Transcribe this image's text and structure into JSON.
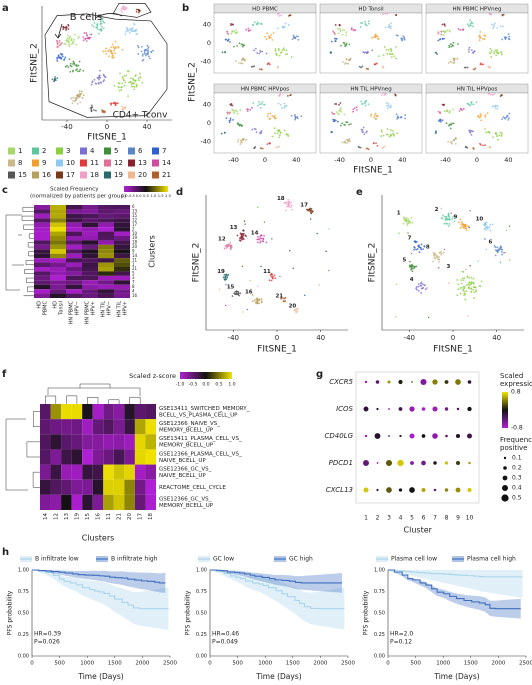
{
  "panels": {
    "a": {
      "label": "a",
      "xlabel": "FItSNE_1",
      "ylabel": "FItSNE_2",
      "xticks": [
        -40,
        0,
        40
      ],
      "annotations": [
        "B cells",
        "CD4+ Tconv"
      ],
      "legend": [
        {
          "label": "1",
          "color": "#a8d86a"
        },
        {
          "label": "2",
          "color": "#5fc7a0"
        },
        {
          "label": "3",
          "color": "#8ccf3f"
        },
        {
          "label": "4",
          "color": "#7b6fd0"
        },
        {
          "label": "5",
          "color": "#3f8f3a"
        },
        {
          "label": "6",
          "color": "#5a86c8"
        },
        {
          "label": "7",
          "color": "#2f5fd0"
        },
        {
          "label": "8",
          "color": "#c9b98a"
        },
        {
          "label": "9",
          "color": "#f0a030"
        },
        {
          "label": "10",
          "color": "#8fc8f0"
        },
        {
          "label": "11",
          "color": "#e03a3a"
        },
        {
          "label": "12",
          "color": "#e0709a"
        },
        {
          "label": "13",
          "color": "#8a1f2f"
        },
        {
          "label": "14",
          "color": "#d04aa0"
        },
        {
          "label": "15",
          "color": "#555555"
        },
        {
          "label": "16",
          "color": "#b8a060"
        },
        {
          "label": "17",
          "color": "#7a3a1a"
        },
        {
          "label": "18",
          "color": "#f0a0c8"
        },
        {
          "label": "19",
          "color": "#2a6a6a"
        },
        {
          "label": "20",
          "color": "#f0b890"
        },
        {
          "label": "21",
          "color": "#b0602a"
        }
      ]
    },
    "b": {
      "label": "b",
      "facets": [
        "HD PBMC",
        "HD Tonsil",
        "HN PBMC HPVneg",
        "HN PBMC HPVpos",
        "HN TIL HPVneg",
        "HN TIL HPVpos"
      ],
      "xticks": [
        -40,
        0,
        40
      ],
      "yticks": [
        -40,
        0,
        40
      ],
      "xlabel": "FItSNE_1",
      "ylabel": "FItSNE_2"
    },
    "c": {
      "label": "c",
      "legend_title": "Scaled Frequency",
      "legend_subtitle": "(normalized by patients per group)",
      "legend_ticks": [
        {
          "value": -1,
          "label": "-1.0"
        },
        {
          "value": -0.5,
          "label": "-0.5"
        },
        {
          "value": 0,
          "label": "0.0"
        },
        {
          "value": 0.5,
          "label": "0.5"
        },
        {
          "value": 1,
          "label": "1.0"
        },
        {
          "value": 1.5,
          "label": "1.5"
        },
        {
          "value": 2,
          "label": "2.0"
        }
      ],
      "rows": [
        "6",
        "13",
        "15",
        "12",
        "17",
        "2",
        "10",
        "19",
        "18",
        "20",
        "9",
        "14",
        "11",
        "1",
        "21",
        "5",
        "3",
        "7",
        "8",
        "4",
        "16"
      ],
      "columns": [
        [
          "HD",
          "PBMC"
        ],
        [
          "HD",
          "Tonsil"
        ],
        [
          "HN PBMC",
          "HPV−"
        ],
        [
          "HN PBMC",
          "HPV+"
        ],
        [
          "HN TIL",
          "HPV−"
        ],
        [
          "HN TIL",
          "HPV+"
        ]
      ],
      "ylabel": "Clusters"
    },
    "d": {
      "label": "d",
      "cluster_labels": [
        "18",
        "17",
        "13",
        "14",
        "12",
        "19",
        "11",
        "15",
        "16",
        "21",
        "20"
      ],
      "xticks": [
        -40,
        0,
        40
      ],
      "xlabel": "FItSNE_1",
      "ylabel": "FItSNE_2"
    },
    "e": {
      "label": "e",
      "cluster_labels": [
        "1",
        "2",
        "9",
        "10",
        "7",
        "8",
        "6",
        "5",
        "4",
        "3"
      ],
      "xticks": [
        -40,
        0,
        40
      ],
      "xlabel": "FItSNE_1",
      "ylabel": "FItSNE_2"
    },
    "f": {
      "label": "f",
      "legend_title": "Scaled z-score",
      "legend_ticks": [
        {
          "value": -1,
          "label": "-1.0"
        },
        {
          "value": -0.5,
          "label": "-0.5"
        },
        {
          "value": 0,
          "label": "0.0"
        },
        {
          "value": 0.5,
          "label": "0.5"
        },
        {
          "value": 1,
          "label": "1.0"
        }
      ],
      "rows": [
        [
          "GSE13411_SWITCHED_MEMORY_",
          "BCELL_VS_PLASMA_CELL_UP"
        ],
        [
          "GSE12366_NAIVE_VS_",
          "MEMORY_BCELL_UP"
        ],
        [
          "GSE13411_PLASMA_CELL_VS_",
          "MEMORY_BCELL_UP"
        ],
        [
          "GSE12366_PLASMA_CELL_VS_",
          "NAIVE_BCELL_UP"
        ],
        [
          "GSE12366_GC_VS_",
          "NAIVE_BCELL_UP"
        ],
        [
          "REACTOME_CELL_CYCLE"
        ],
        [
          "GSE12366_GC_VS_",
          "MEMORY_BCELL_UP"
        ]
      ],
      "columns": [
        "14",
        "12",
        "13",
        "19",
        "15",
        "16",
        "11",
        "21",
        "20",
        "17",
        "18"
      ],
      "xlabel": "Clusters"
    },
    "g": {
      "label": "g",
      "genes": [
        "CXCR5",
        "ICOS",
        "CD40LG",
        "PDCD1",
        "CXCL13"
      ],
      "clusters": [
        1,
        2,
        3,
        4,
        5,
        6,
        7,
        8,
        9,
        10
      ],
      "xlabel": "Cluster",
      "color_title": [
        "Scaled",
        "expression"
      ],
      "color_ticks": [
        0.8,
        -0.8
      ],
      "size_title": [
        "Frequency",
        "positive"
      ],
      "size_ticks": [
        0.1,
        0.2,
        0.3,
        0.4,
        0.5
      ]
    },
    "h": {
      "label": "h",
      "ylabel": "PFS probability",
      "xlabel": "Time (Days)",
      "xticks": [
        0,
        500,
        1000,
        1500,
        2000,
        2500
      ],
      "yticks": [
        {
          "value": 0,
          "label": "0.00"
        },
        {
          "value": 0.25,
          "label": "0.25"
        },
        {
          "value": 0.5,
          "label": "0.50"
        },
        {
          "value": 0.75,
          "label": "0.75"
        },
        {
          "value": 1,
          "label": "1.00"
        }
      ],
      "plots": [
        {
          "legend": [
            "B infiltrate low",
            "B infiltrate high"
          ],
          "hr": "HR=0.39",
          "p": "P=0.026"
        },
        {
          "legend": [
            "GC low",
            "GC high"
          ],
          "hr": "HR=0.46",
          "p": "P=0.049"
        },
        {
          "legend": [
            "Plasma cell low",
            "Plasma cell high"
          ],
          "hr": "HR=2.0",
          "p": "P=0.12"
        }
      ]
    }
  }
}
